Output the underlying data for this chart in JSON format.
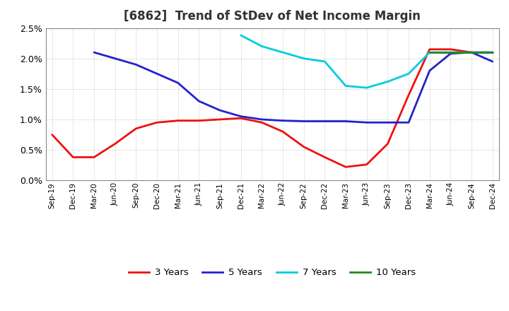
{
  "title": "[6862]  Trend of StDev of Net Income Margin",
  "x_labels": [
    "Sep-19",
    "Dec-19",
    "Mar-20",
    "Jun-20",
    "Sep-20",
    "Dec-20",
    "Mar-21",
    "Jun-21",
    "Sep-21",
    "Dec-21",
    "Mar-22",
    "Jun-22",
    "Sep-22",
    "Dec-22",
    "Mar-23",
    "Jun-23",
    "Sep-23",
    "Dec-23",
    "Mar-24",
    "Jun-24",
    "Sep-24",
    "Dec-24"
  ],
  "series": {
    "3 Years": {
      "color": "#EE1111",
      "linewidth": 2.0,
      "data_x": [
        0,
        1,
        2,
        3,
        4,
        5,
        6,
        7,
        8,
        9,
        10,
        11,
        12,
        13,
        14,
        15,
        16,
        17,
        18,
        19,
        20,
        21
      ],
      "data_y": [
        0.0075,
        0.0038,
        0.0038,
        0.006,
        0.0085,
        0.0095,
        0.0098,
        0.0098,
        0.01,
        0.0102,
        0.0095,
        0.008,
        0.0055,
        0.0038,
        0.0022,
        0.0026,
        0.006,
        0.014,
        0.0215,
        0.0215,
        0.021,
        0.021
      ]
    },
    "5 Years": {
      "color": "#2222CC",
      "linewidth": 2.0,
      "data_x": [
        2,
        3,
        4,
        5,
        6,
        7,
        8,
        9,
        10,
        11,
        12,
        13,
        14,
        15,
        16,
        17,
        18,
        19,
        20,
        21
      ],
      "data_y": [
        0.021,
        0.02,
        0.019,
        0.0175,
        0.016,
        0.013,
        0.0115,
        0.0105,
        0.01,
        0.0098,
        0.0097,
        0.0097,
        0.0097,
        0.0095,
        0.0095,
        0.0095,
        0.018,
        0.0208,
        0.021,
        0.0195
      ]
    },
    "7 Years": {
      "color": "#00CCDD",
      "linewidth": 2.0,
      "data_x": [
        9,
        10,
        11,
        12,
        13,
        14,
        15,
        16,
        17,
        18,
        19,
        20,
        21
      ],
      "data_y": [
        0.0238,
        0.022,
        0.021,
        0.02,
        0.0195,
        0.0155,
        0.0152,
        0.0162,
        0.0175,
        0.021,
        0.021,
        0.021,
        0.021
      ]
    },
    "10 Years": {
      "color": "#228822",
      "linewidth": 2.0,
      "data_x": [
        18,
        19,
        20,
        21
      ],
      "data_y": [
        0.021,
        0.021,
        0.021,
        0.021
      ]
    }
  },
  "ylim": [
    0.0,
    0.025
  ],
  "yticks": [
    0.0,
    0.005,
    0.01,
    0.015,
    0.02,
    0.025
  ],
  "background_color": "#FFFFFF",
  "plot_bg_color": "#FFFFFF",
  "grid_color": "#999999",
  "title_fontsize": 12,
  "title_color": "#333333",
  "legend_labels": [
    "3 Years",
    "5 Years",
    "7 Years",
    "10 Years"
  ],
  "legend_colors": [
    "#EE1111",
    "#2222CC",
    "#00CCDD",
    "#228822"
  ]
}
